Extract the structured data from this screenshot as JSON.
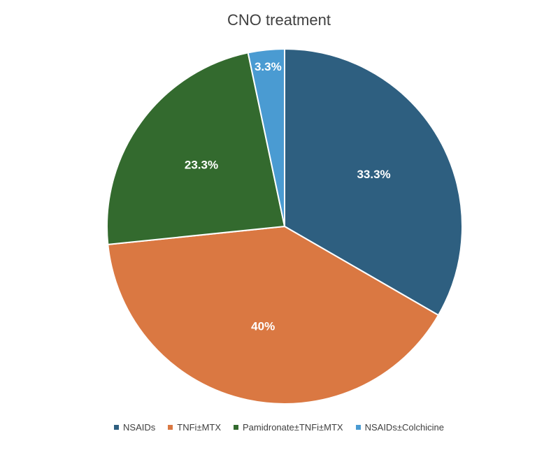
{
  "chart_data": {
    "type": "pie",
    "title": "CNO treatment",
    "categories": [
      "NSAIDs",
      "TNFi±MTX",
      "Pamidronate±TNFi±MTX",
      "NSAIDs±Colchicine"
    ],
    "values": [
      33.3,
      40,
      23.3,
      3.3
    ],
    "data_labels": [
      "33.3%",
      "40%",
      "23.3%",
      "3.3%"
    ],
    "colors": [
      "#2E5F80",
      "#DA7842",
      "#336A2E",
      "#4A9BD2"
    ],
    "legend": "bottom"
  }
}
